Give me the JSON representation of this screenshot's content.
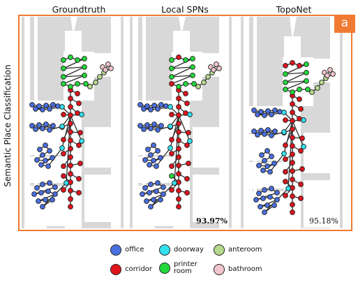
{
  "columns": {
    "groundtruth": "Groundtruth",
    "local_spns": "Local SPNs",
    "toponet": "TopoNet"
  },
  "row_label": "Semantic Place Classification",
  "panel_tag": "a",
  "accuracy": {
    "local_spns": "93.97%",
    "toponet": "95.18%"
  },
  "legend": [
    {
      "label": "office",
      "color": "#4a6fe0"
    },
    {
      "label": "doorway",
      "color": "#33e0ee"
    },
    {
      "label": "anteroom",
      "color": "#b6d98e"
    },
    {
      "label": "corridor",
      "color": "#e0141c"
    },
    {
      "label": "printer room",
      "color": "#22d93a"
    },
    {
      "label": "bathroom",
      "color": "#f2c6cc"
    }
  ],
  "colors": {
    "frame": "#f07a33",
    "edge": "#2c2c2c",
    "map_background": "#d8d8d8",
    "free_space": "#ffffff"
  }
}
